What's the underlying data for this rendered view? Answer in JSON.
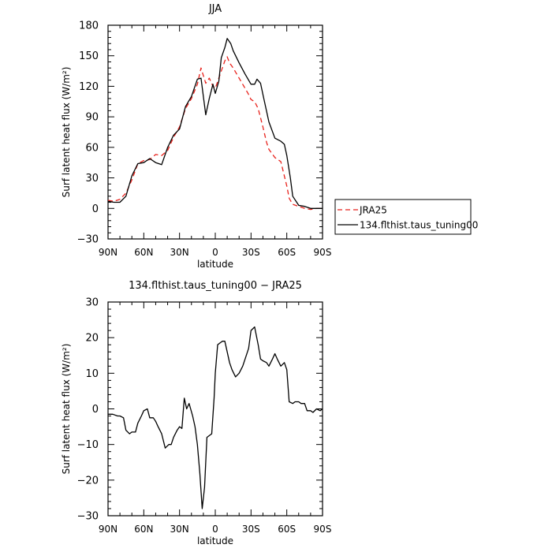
{
  "chart_data": [
    {
      "type": "line",
      "title": "JJA",
      "xlabel": "latitude",
      "ylabel": "Surf latent heat flux (W/m²)",
      "xlim": [
        90,
        -90
      ],
      "ylim": [
        -30,
        180
      ],
      "x_ticks": [
        90,
        60,
        30,
        0,
        -30,
        -60,
        -90
      ],
      "x_tick_labels": [
        "90N",
        "60N",
        "30N",
        "0",
        "30S",
        "60S",
        "90S"
      ],
      "y_ticks": [
        -30,
        0,
        30,
        60,
        90,
        120,
        150,
        180
      ],
      "y_tick_labels": [
        "−30",
        "0",
        "30",
        "60",
        "90",
        "120",
        "150",
        "180"
      ],
      "legend": {
        "placement": "right",
        "entries": [
          "JRA25",
          "134.flthist.taus_tuning00"
        ]
      },
      "series": [
        {
          "name": "JRA25",
          "color": "#e8211b",
          "dash": "dashed",
          "x": [
            90,
            85,
            80,
            75,
            70,
            65,
            60,
            55,
            50,
            45,
            40,
            35,
            30,
            25,
            20,
            15,
            12,
            8,
            5,
            2,
            0,
            -3,
            -5,
            -8,
            -10,
            -12,
            -15,
            -20,
            -25,
            -28,
            -30,
            -33,
            -36,
            -40,
            -43,
            -45,
            -50,
            -55,
            -60,
            -62,
            -65,
            -70,
            -75,
            -80,
            -85,
            -90
          ],
          "y": [
            8,
            7,
            9,
            15,
            28,
            44,
            47,
            48,
            53,
            52,
            57,
            70,
            80,
            98,
            108,
            122,
            138,
            123,
            128,
            120,
            118,
            128,
            135,
            145,
            149,
            143,
            138,
            128,
            118,
            112,
            107,
            105,
            98,
            80,
            65,
            58,
            50,
            46,
            22,
            10,
            4,
            2,
            0,
            -1,
            0,
            0
          ]
        },
        {
          "name": "134.flthist.taus_tuning00",
          "color": "#000000",
          "dash": "solid",
          "x": [
            90,
            85,
            80,
            75,
            70,
            65,
            60,
            55,
            50,
            45,
            40,
            35,
            30,
            25,
            20,
            15,
            12,
            8,
            5,
            2,
            0,
            -3,
            -5,
            -8,
            -10,
            -13,
            -15,
            -20,
            -25,
            -30,
            -33,
            -35,
            -38,
            -40,
            -45,
            -50,
            -55,
            -58,
            -60,
            -63,
            -65,
            -70,
            -75,
            -80,
            -85,
            -90
          ],
          "y": [
            7,
            6,
            6,
            12,
            32,
            44,
            45,
            49,
            45,
            43,
            60,
            72,
            78,
            100,
            110,
            127,
            128,
            92,
            108,
            122,
            113,
            125,
            148,
            158,
            167,
            162,
            155,
            143,
            132,
            122,
            122,
            127,
            123,
            112,
            85,
            69,
            66,
            63,
            52,
            30,
            12,
            3,
            2,
            0,
            0,
            0
          ]
        }
      ]
    },
    {
      "type": "line",
      "title": "134.flthist.taus_tuning00 − JRA25",
      "xlabel": "latitude",
      "ylabel": "Surf latent heat flux (W/m²)",
      "xlim": [
        90,
        -90
      ],
      "ylim": [
        -30,
        30
      ],
      "x_ticks": [
        90,
        60,
        30,
        0,
        -30,
        -60,
        -90
      ],
      "x_tick_labels": [
        "90N",
        "60N",
        "30N",
        "0",
        "30S",
        "60S",
        "90S"
      ],
      "y_ticks": [
        -30,
        -20,
        -10,
        0,
        10,
        20,
        30
      ],
      "y_tick_labels": [
        "−30",
        "−20",
        "−10",
        "0",
        "10",
        "20",
        "30"
      ],
      "series": [
        {
          "name": "134.flthist.taus_tuning00 − JRA25",
          "color": "#000000",
          "dash": "solid",
          "x": [
            90,
            86,
            82,
            80,
            77,
            75,
            72,
            70,
            67,
            65,
            62,
            60,
            57,
            55,
            52,
            50,
            48,
            45,
            42,
            39,
            37,
            35,
            32,
            30,
            28,
            26,
            24,
            22,
            19,
            17,
            15,
            13,
            11,
            9,
            7,
            5,
            3,
            1,
            0,
            -2,
            -4,
            -6,
            -8,
            -10,
            -12,
            -14,
            -17,
            -20,
            -23,
            -25,
            -28,
            -30,
            -33,
            -36,
            -38,
            -40,
            -43,
            -45,
            -48,
            -50,
            -52,
            -55,
            -58,
            -60,
            -62,
            -65,
            -67,
            -70,
            -72,
            -75,
            -77,
            -80,
            -82,
            -85,
            -88,
            -90
          ],
          "y": [
            -1.5,
            -1.5,
            -2,
            -2,
            -2.5,
            -6,
            -7,
            -6.5,
            -6.5,
            -4,
            -2,
            -0.5,
            0,
            -2.5,
            -2.5,
            -3.5,
            -5,
            -7,
            -11,
            -10,
            -10,
            -8,
            -6,
            -5,
            -5.5,
            3,
            0,
            1.5,
            -2,
            -5,
            -10,
            -18,
            -28,
            -22,
            -8,
            -7.5,
            -7,
            3,
            10,
            18,
            18.5,
            19,
            19,
            16,
            13,
            11,
            9,
            10,
            12,
            14,
            17,
            22,
            23,
            18,
            14,
            13.5,
            13,
            12,
            14,
            15.5,
            14,
            12,
            13,
            11,
            2,
            1.5,
            2,
            2,
            1.5,
            1.5,
            -0.5,
            -0.5,
            -1,
            0,
            -0.5,
            0
          ]
        }
      ]
    }
  ]
}
